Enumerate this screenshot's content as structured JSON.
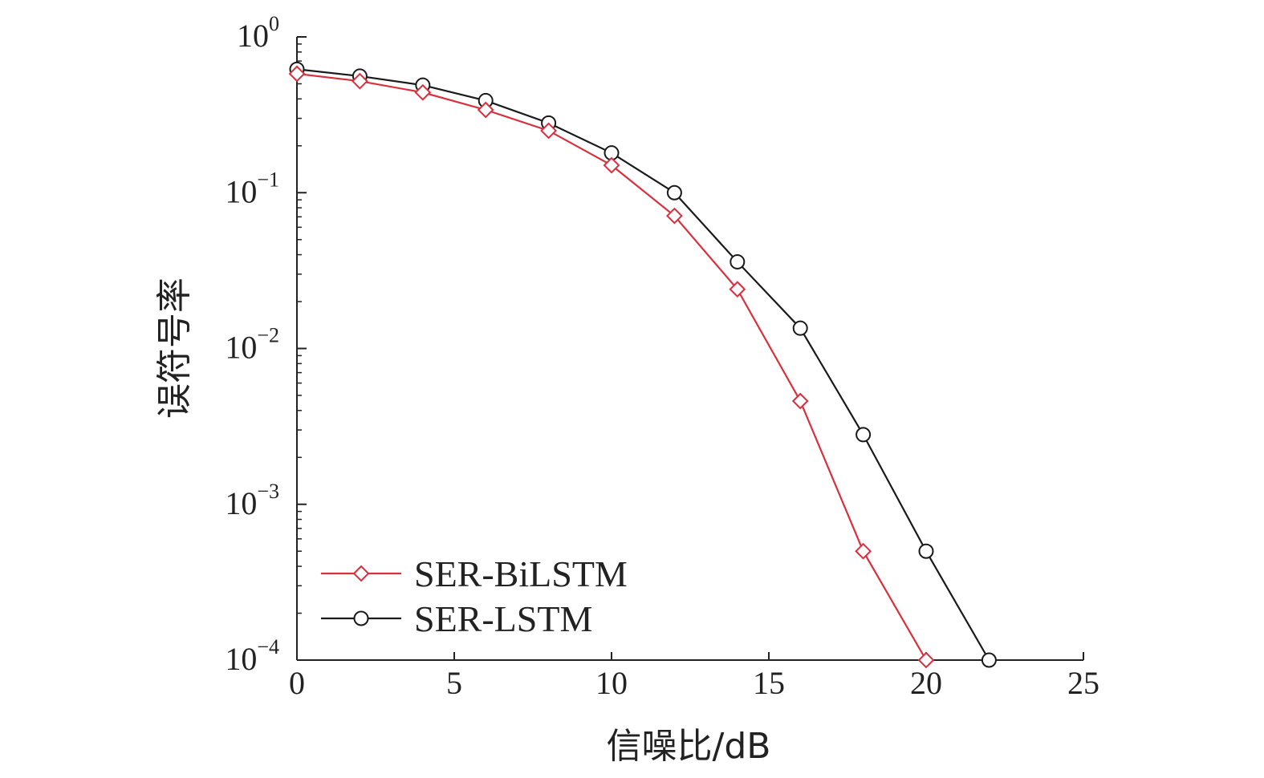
{
  "chart_data": {
    "type": "line",
    "xlabel": "信噪比/dB",
    "ylabel": "误符号率",
    "xlim": [
      0,
      25
    ],
    "ylim": [
      0.0001,
      1
    ],
    "yscale": "log",
    "x_ticks": [
      "0",
      "5",
      "10",
      "15",
      "20",
      "25"
    ],
    "y_ticks": [
      {
        "base": "10",
        "exp": "0"
      },
      {
        "base": "10",
        "exp": "−1"
      },
      {
        "base": "10",
        "exp": "−2"
      },
      {
        "base": "10",
        "exp": "−3"
      },
      {
        "base": "10",
        "exp": "−4"
      }
    ],
    "grid": false,
    "legend_position": "bottom-left",
    "series": [
      {
        "name": "SER-BiLSTM",
        "color": "#d9303e",
        "marker": "diamond",
        "x": [
          0,
          2,
          4,
          6,
          8,
          10,
          12,
          14,
          16,
          18,
          20
        ],
        "y": [
          0.58,
          0.52,
          0.44,
          0.34,
          0.25,
          0.15,
          0.071,
          0.024,
          0.0046,
          0.0005,
          0.0001
        ]
      },
      {
        "name": "SER-LSTM",
        "color": "#1a1a1a",
        "marker": "circle",
        "x": [
          0,
          2,
          4,
          6,
          8,
          10,
          12,
          14,
          16,
          18,
          20,
          22
        ],
        "y": [
          0.62,
          0.56,
          0.49,
          0.39,
          0.28,
          0.18,
          0.1,
          0.036,
          0.0135,
          0.0028,
          0.0005,
          0.0001
        ]
      }
    ]
  }
}
